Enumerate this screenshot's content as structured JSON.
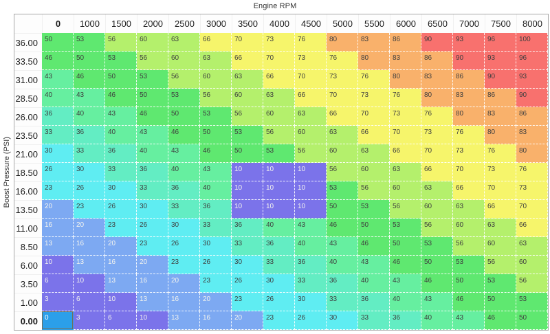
{
  "title": "Engine RPM",
  "y_axis_label": "Boost Pressure (PSI)",
  "columns": [
    "0",
    "1000",
    "1500",
    "2000",
    "2500",
    "3000",
    "3500",
    "4000",
    "4500",
    "5000",
    "5500",
    "6000",
    "6500",
    "7000",
    "7500",
    "8000"
  ],
  "rows": [
    {
      "label": "36.00",
      "values": [
        50,
        53,
        56,
        60,
        63,
        66,
        70,
        73,
        76,
        80,
        83,
        86,
        90,
        93,
        96,
        100
      ]
    },
    {
      "label": "33.50",
      "values": [
        46,
        50,
        53,
        56,
        60,
        63,
        66,
        70,
        73,
        76,
        80,
        83,
        86,
        90,
        93,
        96
      ]
    },
    {
      "label": "31.00",
      "values": [
        43,
        46,
        50,
        53,
        56,
        60,
        63,
        66,
        70,
        73,
        76,
        80,
        83,
        86,
        90,
        93
      ]
    },
    {
      "label": "28.50",
      "values": [
        40,
        43,
        46,
        50,
        53,
        56,
        60,
        63,
        66,
        70,
        73,
        76,
        80,
        83,
        86,
        90
      ]
    },
    {
      "label": "26.00",
      "values": [
        36,
        40,
        43,
        46,
        50,
        53,
        56,
        60,
        63,
        66,
        70,
        73,
        76,
        80,
        83,
        86
      ]
    },
    {
      "label": "23.50",
      "values": [
        33,
        36,
        40,
        43,
        46,
        50,
        53,
        56,
        60,
        63,
        66,
        70,
        73,
        76,
        80,
        83
      ]
    },
    {
      "label": "21.00",
      "values": [
        30,
        33,
        36,
        40,
        43,
        46,
        50,
        53,
        56,
        60,
        63,
        66,
        70,
        73,
        76,
        80
      ]
    },
    {
      "label": "18.50",
      "values": [
        26,
        30,
        33,
        36,
        40,
        43,
        10,
        10,
        10,
        56,
        60,
        63,
        66,
        70,
        73,
        76
      ]
    },
    {
      "label": "16.00",
      "values": [
        23,
        26,
        30,
        33,
        36,
        40,
        10,
        10,
        10,
        53,
        56,
        60,
        63,
        66,
        70,
        73
      ]
    },
    {
      "label": "13.50",
      "values": [
        20,
        23,
        26,
        30,
        33,
        36,
        10,
        10,
        10,
        50,
        53,
        56,
        60,
        63,
        66,
        70
      ]
    },
    {
      "label": "11.00",
      "values": [
        16,
        20,
        23,
        26,
        30,
        33,
        36,
        40,
        43,
        46,
        50,
        53,
        56,
        60,
        63,
        66
      ]
    },
    {
      "label": "8.50",
      "values": [
        13,
        16,
        20,
        23,
        26,
        30,
        33,
        36,
        40,
        43,
        46,
        50,
        53,
        56,
        60,
        63
      ]
    },
    {
      "label": "6.00",
      "values": [
        10,
        13,
        16,
        20,
        23,
        26,
        30,
        33,
        36,
        40,
        43,
        46,
        50,
        53,
        56,
        60
      ]
    },
    {
      "label": "3.50",
      "values": [
        6,
        10,
        13,
        16,
        20,
        23,
        26,
        30,
        33,
        36,
        40,
        43,
        46,
        50,
        53,
        56
      ]
    },
    {
      "label": "1.00",
      "values": [
        3,
        6,
        10,
        13,
        16,
        20,
        23,
        26,
        30,
        33,
        36,
        40,
        43,
        46,
        50,
        53
      ]
    },
    {
      "label": "0.00",
      "values": [
        0,
        3,
        6,
        10,
        13,
        16,
        20,
        23,
        26,
        30,
        33,
        36,
        40,
        43,
        46,
        50
      ]
    }
  ],
  "selected_cell": {
    "row_label": "0.00",
    "col_label": "0",
    "value": 0
  },
  "colors": {
    "scale": [
      {
        "max": 10,
        "bg": "#7b73ea",
        "text": "#f4f4ee"
      },
      {
        "max": 20,
        "bg": "#7da9f2",
        "text": "#f4f4ee"
      },
      {
        "max": 30,
        "bg": "#5fedf2",
        "text": "#3f3f3f"
      },
      {
        "max": 36,
        "bg": "#63edc3",
        "text": "#3f3f3f"
      },
      {
        "max": 43,
        "bg": "#66efa0",
        "text": "#3f3f3f"
      },
      {
        "max": 53,
        "bg": "#5fe870",
        "text": "#3f3f3f"
      },
      {
        "max": 63,
        "bg": "#b4f06c",
        "text": "#3f3f3f"
      },
      {
        "max": 76,
        "bg": "#f6f56b",
        "text": "#3f3f3f"
      },
      {
        "max": 86,
        "bg": "#f9b16b",
        "text": "#3f3f3f"
      },
      {
        "max": 100,
        "bg": "#f8716e",
        "text": "#3f3f3f"
      }
    ],
    "selected_bg": "#2b9fe9",
    "selected_text": "#ffffff",
    "selected_border": "#6f6f5c",
    "table_border": "#a6a6a6"
  }
}
